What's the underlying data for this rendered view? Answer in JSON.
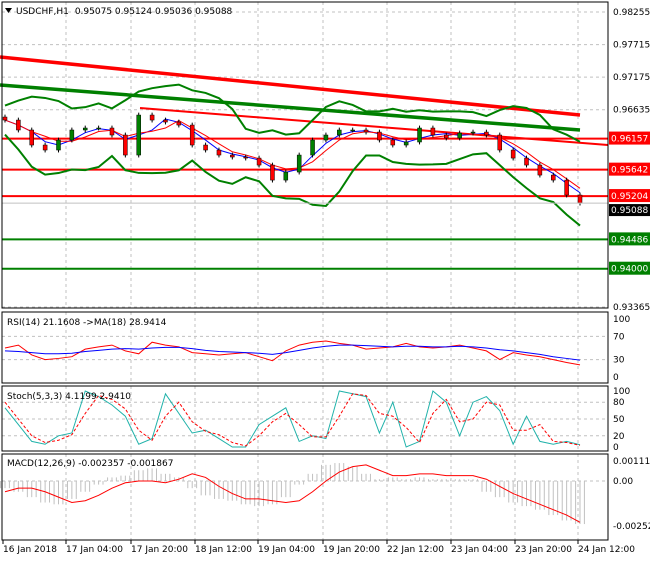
{
  "chart_data": [
    {
      "type": "candlestick",
      "title": "USDCHF,H1",
      "ohlc_header": "0.95075 0.95124 0.95036 0.95088",
      "symbol_menu_icon": "triangle-down-icon",
      "x_tick_labels": [
        "16 Jan 2018",
        "17 Jan 04:00",
        "17 Jan 20:00",
        "18 Jan 12:00",
        "19 Jan 04:00",
        "19 Jan 20:00",
        "22 Jan 12:00",
        "23 Jan 04:00",
        "23 Jan 20:00",
        "24 Jan 12:00"
      ],
      "y_tick_labels": [
        "0.98255",
        "0.97715",
        "0.97175",
        "0.96635",
        "0.93365"
      ],
      "ylim": [
        0.93365,
        0.98255
      ],
      "grid": true,
      "closes": [
        0.96464,
        0.96299,
        0.9605,
        0.95967,
        0.96133,
        0.96299,
        0.96332,
        0.96332,
        0.96216,
        0.95884,
        0.96547,
        0.96464,
        0.96431,
        0.96381,
        0.9605,
        0.95967,
        0.95884,
        0.95851,
        0.95834,
        0.95718,
        0.95469,
        0.95602,
        0.95884,
        0.96133,
        0.96216,
        0.96299,
        0.96299,
        0.96265,
        0.96133,
        0.9605,
        0.961,
        0.96332,
        0.96216,
        0.96166,
        0.96249,
        0.96265,
        0.96216,
        0.95967,
        0.95834,
        0.95718,
        0.95552,
        0.95469,
        0.95221,
        0.95088
      ],
      "current_price": "0.95088",
      "trendlines": [
        {
          "color": "#ff0000",
          "style": "thick",
          "from": 0.97509,
          "to": 0.96547
        },
        {
          "color": "#008000",
          "style": "thick",
          "from": 0.97045,
          "to": 0.96299
        },
        {
          "color": "#ff0000",
          "style": "thin",
          "from": 0.96663,
          "to": 0.9605
        }
      ],
      "levels": [
        {
          "price": "0.96157",
          "color": "#ff0000"
        },
        {
          "price": "0.95642",
          "color": "#ff0000"
        },
        {
          "price": "0.95204",
          "color": "#ff0000"
        },
        {
          "price": "0.94486",
          "color": "#008000"
        },
        {
          "price": "0.94000",
          "color": "#008000"
        }
      ],
      "colors": {
        "bull": "#008000",
        "bear": "#ff0000",
        "ma_fast": "#0000ff",
        "ma_slow": "#ff0000",
        "bands": "#008000"
      }
    },
    {
      "type": "line",
      "title": "RSI(14) 21.1608  ->MA(18) 28.9414",
      "ylim": [
        0,
        100
      ],
      "y_tick_labels": [
        "100",
        "70",
        "30",
        "0"
      ],
      "series": [
        {
          "color": "#ff0000",
          "values": [
            50,
            55,
            38,
            30,
            32,
            35,
            48,
            52,
            55,
            45,
            40,
            60,
            55,
            52,
            42,
            40,
            38,
            40,
            42,
            35,
            28,
            45,
            55,
            60,
            62,
            58,
            55,
            48,
            50,
            52,
            58,
            52,
            50,
            52,
            55,
            50,
            45,
            30,
            42,
            38,
            35,
            30,
            25,
            21
          ]
        },
        {
          "color": "#0000ff",
          "values": [
            45,
            44,
            42,
            40,
            40,
            41,
            44,
            46,
            48,
            49,
            48,
            50,
            51,
            51,
            49,
            46,
            44,
            43,
            42,
            41,
            39,
            42,
            46,
            50,
            53,
            55,
            55,
            54,
            53,
            52,
            53,
            53,
            52,
            52,
            53,
            52,
            50,
            47,
            45,
            42,
            39,
            35,
            32,
            29
          ]
        }
      ]
    },
    {
      "type": "line",
      "title": "Stoch(5,3,3) 4.1199 2.9410",
      "ylim": [
        0,
        100
      ],
      "y_tick_labels": [
        "100",
        "80",
        "50",
        "20",
        "0"
      ],
      "series": [
        {
          "color": "#20b2aa",
          "values": [
            70,
            40,
            10,
            5,
            20,
            25,
            100,
            90,
            75,
            55,
            5,
            15,
            95,
            60,
            25,
            30,
            15,
            0,
            0,
            40,
            55,
            70,
            10,
            20,
            15,
            100,
            95,
            90,
            25,
            80,
            0,
            10,
            100,
            80,
            20,
            80,
            90,
            65,
            5,
            55,
            10,
            5,
            10,
            4
          ]
        },
        {
          "color": "#ff0000",
          "values": [
            80,
            50,
            20,
            8,
            12,
            22,
            60,
            92,
            85,
            68,
            30,
            12,
            55,
            80,
            45,
            28,
            22,
            8,
            2,
            20,
            45,
            60,
            40,
            18,
            18,
            55,
            95,
            92,
            60,
            55,
            35,
            8,
            60,
            85,
            45,
            50,
            80,
            75,
            30,
            30,
            40,
            10,
            8,
            3
          ]
        }
      ]
    },
    {
      "type": "bar+line",
      "title": "MACD(12,26,9) -0.002357 -0.001867",
      "ylim": [
        -0.0028,
        0.0014
      ],
      "y_tick_labels": [
        "0.001115",
        "0.00",
        "-0.002522"
      ],
      "histogram": [
        -0.0004,
        -0.0006,
        -0.0009,
        -0.0012,
        -0.0013,
        -0.001,
        -0.0006,
        -0.0002,
        0.0002,
        0.0003,
        0.0006,
        0.0007,
        0.0004,
        0.0002,
        -0.0004,
        -0.0008,
        -0.001,
        -0.0011,
        -0.0013,
        -0.0014,
        -0.0013,
        -0.0009,
        -0.0002,
        0.0004,
        0.0009,
        0.001,
        0.0008,
        0.0004,
        0.0001,
        0.0002,
        0.0001,
        0.0002,
        0.0001,
        0.0001,
        0.0001,
        0.0001,
        -0.0006,
        -0.0009,
        -0.0012,
        -0.0014,
        -0.0016,
        -0.0019,
        -0.0022,
        -0.0024
      ],
      "signal": [
        -0.0006,
        -0.0004,
        -0.0004,
        -0.0006,
        -0.0009,
        -0.0012,
        -0.0011,
        -0.0008,
        -0.0004,
        -0.0001,
        0.0,
        0.0,
        -0.0001,
        0.0001,
        0.0004,
        0.0002,
        -0.0003,
        -0.0007,
        -0.001,
        -0.001,
        -0.0011,
        -0.0012,
        -0.0011,
        -0.0006,
        0.0,
        0.0005,
        0.0008,
        0.0009,
        0.0006,
        0.0003,
        0.0003,
        0.0004,
        0.0004,
        0.0003,
        0.0003,
        0.0003,
        0.0001,
        -0.0003,
        -0.0007,
        -0.001,
        -0.0013,
        -0.0016,
        -0.0019,
        -0.0023
      ],
      "colors": {
        "histogram": "#c0c0c0",
        "signal": "#ff0000"
      }
    }
  ]
}
